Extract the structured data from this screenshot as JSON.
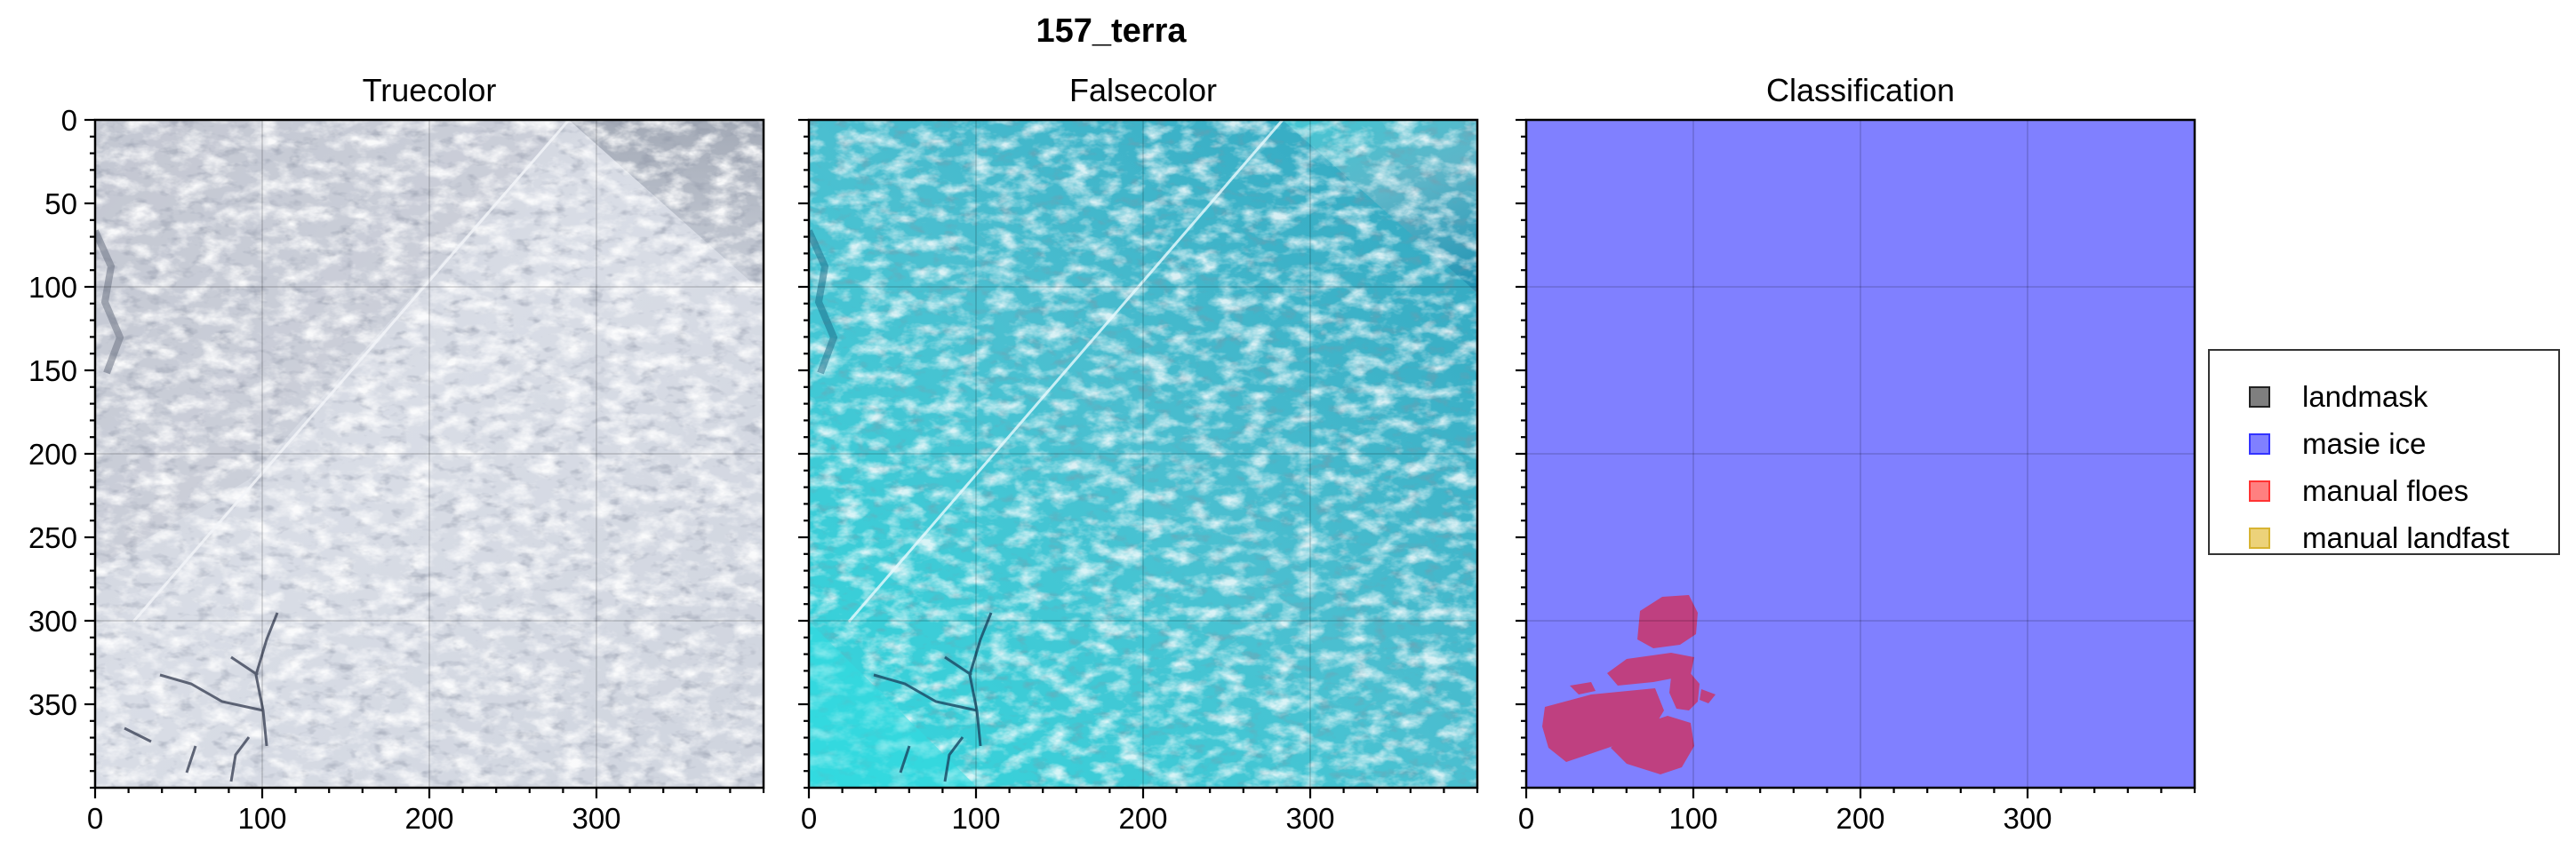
{
  "figure": {
    "suptitle": "157_terra"
  },
  "panels": [
    {
      "title": "Truecolor",
      "image": "satellite truecolor imagery of sea ice with cloud cover",
      "x_ticks": [
        "0",
        "100",
        "200",
        "300"
      ],
      "y_ticks": [
        "0",
        "50",
        "100",
        "150",
        "200",
        "250",
        "300",
        "350"
      ]
    },
    {
      "title": "Falsecolor",
      "image": "satellite falsecolor imagery, ice shown cyan",
      "x_ticks": [
        "0",
        "100",
        "200",
        "300"
      ],
      "y_ticks": []
    },
    {
      "title": "Classification",
      "image": "classification mask, masie ice in blue, manual floes in magenta",
      "x_ticks": [
        "0",
        "100",
        "200",
        "300"
      ],
      "y_ticks": []
    }
  ],
  "axes": {
    "xlim": [
      0,
      400
    ],
    "ylim": [
      400,
      0
    ],
    "grid": true
  },
  "legend": {
    "placement": "right",
    "items": [
      {
        "label": "landmask",
        "color": "#7f7f7f",
        "edge": "#222222"
      },
      {
        "label": "masie ice",
        "color": "#8080ff",
        "edge": "#3333ff"
      },
      {
        "label": "manual floes",
        "color": "#ff8080",
        "edge": "#ff3333"
      },
      {
        "label": "manual landfast",
        "color": "#ecd27a",
        "edge": "#d8b432"
      }
    ]
  },
  "classification": {
    "background_color": "#8080ff",
    "floe_color": "#bf4080"
  },
  "colors": {
    "falsecolor_ice": "#35d6dc",
    "truecolor_ice": "#d6dbe6"
  }
}
